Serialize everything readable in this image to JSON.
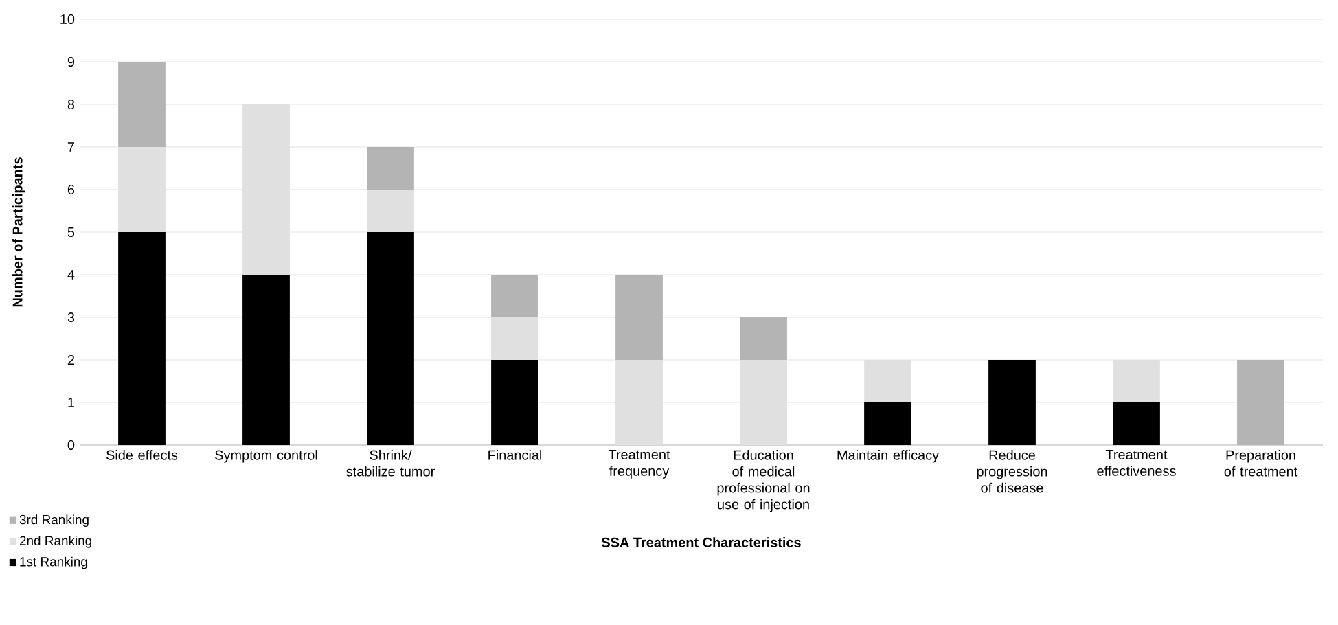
{
  "chart_data": {
    "type": "bar",
    "stacked": true,
    "xlabel": "SSA Treatment Characteristics",
    "ylabel": "Number of Participants",
    "categories": [
      "Side effects",
      "Symptom control",
      "Shrink/ stabilize tumor",
      "Financial",
      "Treatment frequency",
      "Education of medical professional on use of injection",
      "Maintain efficacy",
      "Reduce progression of disease",
      "Treatment effectiveness",
      "Preparation of treatment"
    ],
    "series": [
      {
        "name": "1st Ranking",
        "color": "#000000",
        "values": [
          5,
          4,
          5,
          2,
          0,
          0,
          1,
          2,
          1,
          0
        ]
      },
      {
        "name": "2nd Ranking",
        "color": "#e0e0e0",
        "values": [
          2,
          4,
          1,
          1,
          2,
          2,
          1,
          0,
          1,
          0
        ]
      },
      {
        "name": "3rd Ranking",
        "color": "#b4b4b4",
        "values": [
          2,
          0,
          1,
          1,
          2,
          1,
          0,
          0,
          0,
          2
        ]
      }
    ],
    "ylim": [
      0,
      10
    ],
    "yticks": [
      0,
      1,
      2,
      3,
      4,
      5,
      6,
      7,
      8,
      9,
      10
    ],
    "grid": "y",
    "legend": "bottom left"
  }
}
